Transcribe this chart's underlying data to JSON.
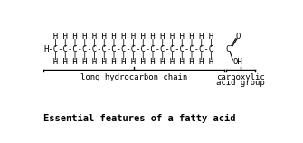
{
  "background_color": "#ffffff",
  "font_family": "monospace",
  "top_h": "  H H H H H H H H H H H H H H H H H",
  "top_tick": "  | | | | | | | | | | | | | | | | |",
  "chain": "H-C-C-C-C-C-C-C-C-C-C-C-C-C-C-C-C-C",
  "bot_tick": "  | | | | | | | | | | | | | | | | |",
  "bot_h": "  H H H H H H H H H H H H H H H H H",
  "carboxyl_O": "O",
  "carboxyl_dbl": "=",
  "carboxyl_C": "C",
  "carboxyl_OH": "OH",
  "label_chain": "long hydrocarbon chain",
  "label_carboxyl_1": "carboxylic",
  "label_carboxyl_2": "acid group",
  "title": "Essential features of a fatty acid",
  "struct_fontsize": 6.5,
  "label_fontsize": 6.5,
  "title_fontsize": 7.5
}
